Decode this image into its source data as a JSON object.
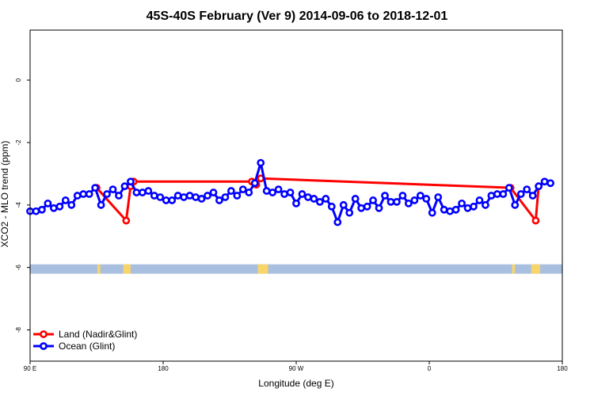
{
  "chart_data": {
    "type": "line",
    "title": "45S-40S February (Ver 9)   2014-09-06 to 2018-12-01",
    "xlabel": "Longitude (deg E)",
    "ylabel": "XCO2 - MLO trend (ppm)",
    "xlim": [
      90,
      450
    ],
    "ylim": [
      -9.0,
      1.6
    ],
    "x_ticks": [
      {
        "value": 90,
        "label": "90 E"
      },
      {
        "value": 180,
        "label": "180"
      },
      {
        "value": 270,
        "label": "90 W"
      },
      {
        "value": 360,
        "label": "0"
      },
      {
        "value": 450,
        "label": "180"
      }
    ],
    "y_ticks": [
      {
        "value": 0,
        "label": "0"
      },
      {
        "value": -2,
        "label": "-2"
      },
      {
        "value": -4,
        "label": "-4"
      },
      {
        "value": -6,
        "label": "-6"
      },
      {
        "value": -8,
        "label": "-8"
      }
    ],
    "legend_position": "bottom-left",
    "grid": false,
    "land_band": {
      "y_range": [
        -6.2,
        -5.9
      ],
      "ocean_color": "#a9bfdf",
      "land_color": "#f7d56a",
      "land_lon_ranges": [
        [
          135.5,
          137.5
        ],
        [
          153,
          158
        ],
        [
          244,
          251
        ],
        [
          416,
          418
        ],
        [
          429,
          435
        ]
      ]
    },
    "series": [
      {
        "name": "Land (Nadir&Glint)",
        "color": "#ff0000",
        "x": [
          135,
          155,
          158,
          160,
          240,
          243,
          246,
          415,
          432,
          434
        ],
        "y": [
          -3.45,
          -4.5,
          -3.4,
          -3.25,
          -3.25,
          -3.35,
          -3.15,
          -3.45,
          -4.5,
          -3.4
        ]
      },
      {
        "name": "Ocean (Glint)",
        "color": "#0000ff",
        "x": [
          90,
          94,
          98,
          102,
          106,
          110,
          114,
          118,
          122,
          126,
          130,
          134,
          138,
          142,
          146,
          150,
          154,
          158,
          162,
          166,
          170,
          174,
          178,
          182,
          186,
          190,
          194,
          198,
          202,
          206,
          210,
          214,
          218,
          222,
          226,
          230,
          234,
          238,
          242,
          246,
          250,
          254,
          258,
          262,
          266,
          270,
          274,
          278,
          282,
          286,
          290,
          294,
          298,
          302,
          306,
          310,
          314,
          318,
          322,
          326,
          330,
          334,
          338,
          342,
          346,
          350,
          354,
          358,
          362,
          366,
          370,
          374,
          378,
          382,
          386,
          390,
          394,
          398,
          402,
          406,
          410,
          414,
          418,
          422,
          426,
          430,
          434,
          438,
          442
        ],
        "y": [
          -4.2,
          -4.2,
          -4.15,
          -3.95,
          -4.1,
          -4.05,
          -3.85,
          -4.0,
          -3.7,
          -3.65,
          -3.65,
          -3.45,
          -4.0,
          -3.65,
          -3.5,
          -3.7,
          -3.4,
          -3.25,
          -3.6,
          -3.6,
          -3.55,
          -3.7,
          -3.75,
          -3.85,
          -3.85,
          -3.7,
          -3.75,
          -3.7,
          -3.75,
          -3.8,
          -3.7,
          -3.6,
          -3.85,
          -3.75,
          -3.55,
          -3.7,
          -3.5,
          -3.6,
          -3.3,
          -2.65,
          -3.55,
          -3.6,
          -3.5,
          -3.65,
          -3.6,
          -3.95,
          -3.65,
          -3.75,
          -3.8,
          -3.9,
          -3.8,
          -4.05,
          -4.55,
          -4.0,
          -4.25,
          -3.8,
          -4.1,
          -4.05,
          -3.85,
          -4.1,
          -3.7,
          -3.9,
          -3.9,
          -3.7,
          -3.95,
          -3.85,
          -3.7,
          -3.8,
          -4.25,
          -3.75,
          -4.15,
          -4.2,
          -4.15,
          -3.95,
          -4.1,
          -4.05,
          -3.85,
          -4.0,
          -3.7,
          -3.65,
          -3.65,
          -3.45,
          -4.0,
          -3.65,
          -3.5,
          -3.7,
          -3.4,
          -3.25,
          -3.3
        ]
      }
    ]
  }
}
